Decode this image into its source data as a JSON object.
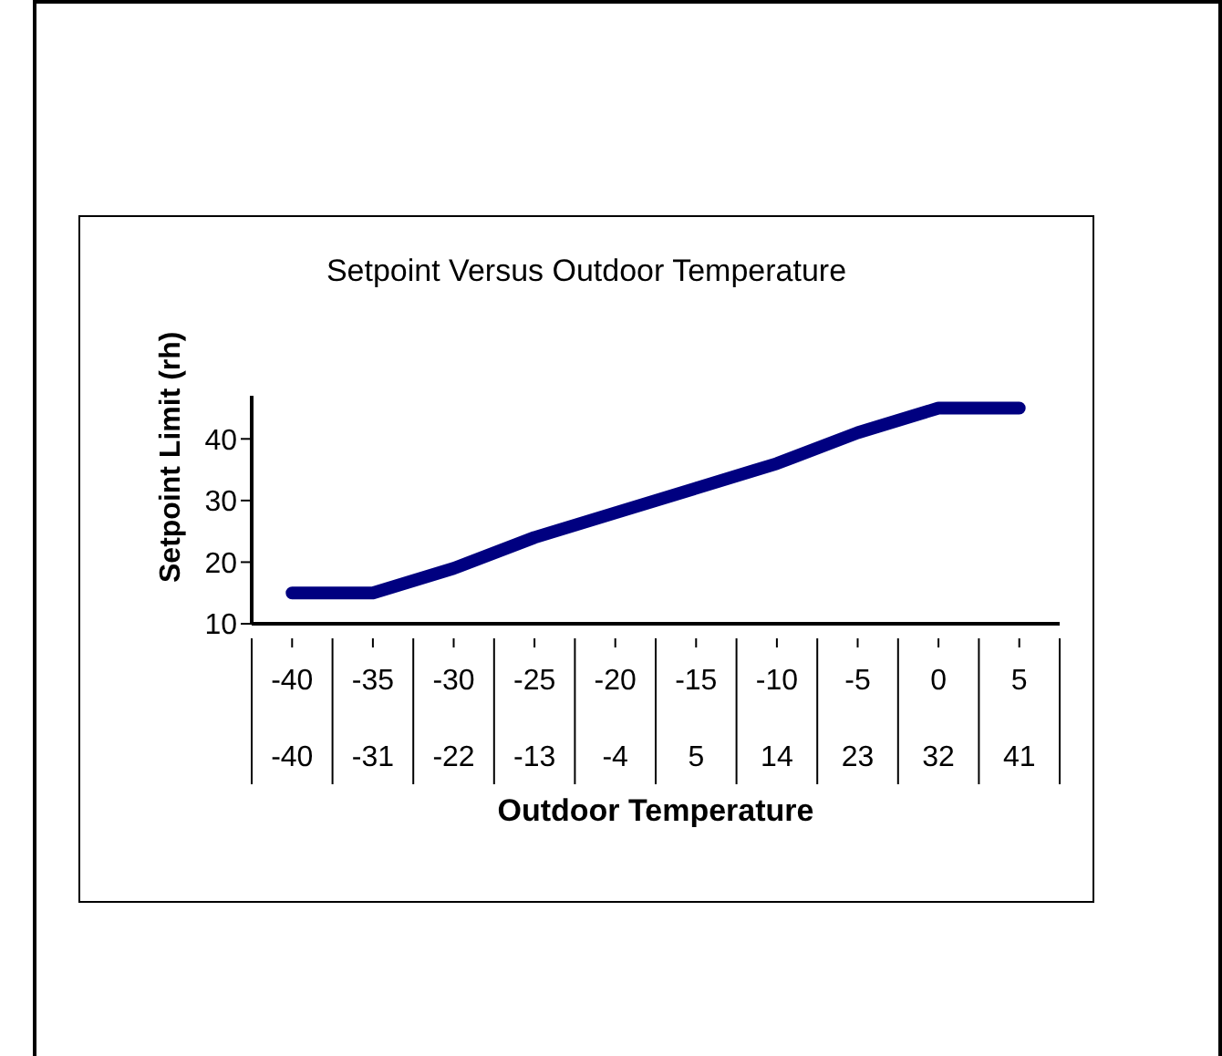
{
  "chart_data": {
    "type": "line",
    "title": "Setpoint Versus Outdoor Temperature",
    "xlabel": "Outdoor Temperature",
    "ylabel": "Setpoint Limit (rh)",
    "categories": [
      "-40\n-40",
      "-35\n-31",
      "-30\n-22",
      "-25\n-13",
      "-20\n-4",
      "-15\n5",
      "-10\n14",
      "-5\n23",
      "0\n32",
      "5\n41"
    ],
    "series": [
      {
        "color": "#000080",
        "values": [
          15,
          15,
          19,
          24,
          28,
          32,
          36,
          41,
          45,
          45
        ]
      }
    ],
    "ylim": [
      10,
      47
    ],
    "yticks": [
      10,
      20,
      30,
      40
    ],
    "marker": "none",
    "line_style": "solid"
  }
}
